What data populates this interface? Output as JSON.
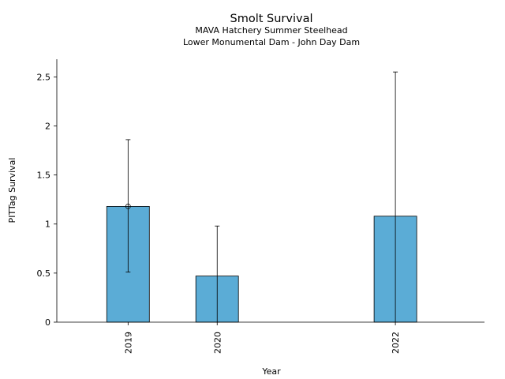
{
  "chart_data": {
    "type": "bar",
    "title": "Smolt Survival",
    "subtitle_lines": [
      "MAVA Hatchery Summer Steelhead",
      "Lower Monumental Dam - John Day Dam"
    ],
    "xlabel": "Year",
    "ylabel": "PITTag Survival",
    "x": [
      2019,
      2020,
      2022
    ],
    "categories": [
      "2019",
      "2020",
      "2022"
    ],
    "values": [
      1.18,
      0.47,
      1.08
    ],
    "error_low": [
      0.51,
      0.0,
      0.0
    ],
    "error_high": [
      1.86,
      0.98,
      2.55
    ],
    "point_markers": [
      1.18,
      null,
      null
    ],
    "xlim": [
      2018.2,
      2023.0
    ],
    "ylim": [
      0,
      2.68
    ],
    "yticks": [
      0,
      0.5,
      1,
      1.5,
      2,
      2.5
    ],
    "ytick_labels": [
      "0",
      "0.5",
      "1",
      "1.5",
      "2",
      "2.5"
    ],
    "grid": false,
    "bar_color": "#5bacd6",
    "edge_color": "#000000"
  }
}
